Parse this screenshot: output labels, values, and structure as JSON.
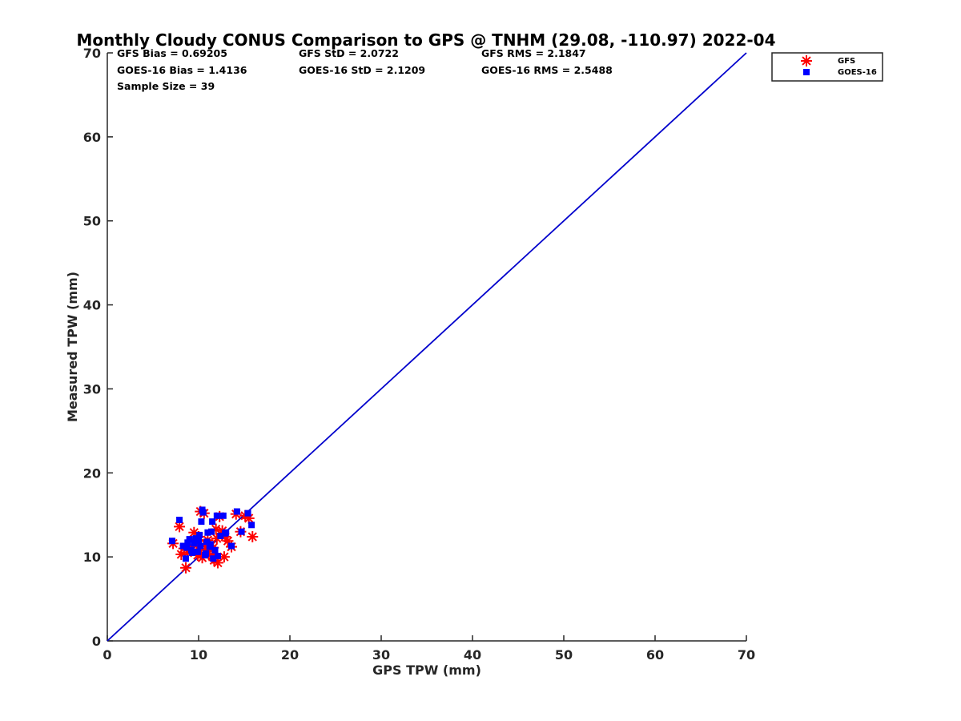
{
  "chart_data": {
    "type": "scatter",
    "title": "Monthly Cloudy CONUS Comparison to GPS @ TNHM (29.08, -110.97) 2022-04",
    "xlabel": "GPS TPW (mm)",
    "ylabel": "Measured TPW (mm)",
    "xlim": [
      0,
      70
    ],
    "ylim": [
      0,
      70
    ],
    "xticks": [
      "0",
      "10",
      "20",
      "30",
      "40",
      "50",
      "60",
      "70"
    ],
    "yticks": [
      "0",
      "10",
      "20",
      "30",
      "40",
      "50",
      "60",
      "70"
    ],
    "grid": false,
    "legend_position": "outside-top-right",
    "stats": [
      "GFS Bias = 0.69205",
      "GFS StD = 2.0722",
      "GFS RMS = 2.1847",
      "GOES-16 Bias = 1.4136",
      "GOES-16 StD = 2.1209",
      "GOES-16 RMS = 2.5488",
      "Sample Size = 39"
    ],
    "reference_line": {
      "color": "#0000cc",
      "x": [
        0,
        70
      ],
      "y": [
        0,
        70
      ]
    },
    "series": [
      {
        "name": "GFS",
        "marker": "asterisk",
        "color": "#ff0000",
        "x": [
          7.2,
          7.9,
          8.1,
          8.6,
          8.8,
          9.0,
          9.3,
          9.6,
          9.9,
          10.0,
          10.2,
          10.3,
          10.4,
          10.6,
          10.8,
          11.0,
          11.1,
          11.3,
          11.5,
          11.7,
          11.9,
          12.1,
          12.3,
          12.6,
          12.9,
          13.2,
          13.6,
          14.1,
          14.6,
          15.1,
          15.5,
          15.9,
          8.4,
          9.5,
          10.7,
          11.6,
          12.0,
          12.8,
          9.8
        ],
        "y": [
          11.6,
          13.6,
          10.3,
          8.7,
          10.5,
          11.2,
          10.9,
          11.8,
          10.2,
          12.4,
          15.4,
          11.0,
          9.9,
          15.2,
          11.5,
          12.0,
          10.4,
          11.3,
          10.1,
          9.6,
          13.3,
          9.3,
          14.8,
          13.1,
          12.4,
          11.9,
          11.2,
          15.1,
          13.0,
          14.9,
          14.6,
          12.4,
          11.0,
          12.9,
          10.8,
          11.1,
          12.2,
          10.0,
          11.4
        ]
      },
      {
        "name": "GOES-16",
        "marker": "square",
        "color": "#0000ff",
        "x": [
          7.1,
          7.9,
          8.3,
          8.6,
          8.8,
          9.0,
          9.2,
          9.5,
          9.7,
          9.9,
          10.1,
          10.2,
          10.3,
          10.4,
          10.5,
          10.7,
          10.9,
          11.0,
          11.2,
          11.4,
          11.5,
          11.6,
          11.8,
          12.0,
          12.1,
          12.4,
          12.7,
          13.0,
          13.6,
          14.2,
          14.7,
          15.4,
          15.8,
          9.3,
          10.0,
          10.8,
          11.3,
          12.9,
          8.7
        ],
        "y": [
          11.9,
          14.4,
          11.3,
          9.8,
          11.7,
          12.1,
          10.8,
          11.6,
          12.2,
          10.6,
          12.6,
          11.3,
          14.2,
          15.6,
          15.3,
          10.2,
          11.8,
          12.9,
          11.2,
          13.0,
          14.2,
          9.8,
          10.8,
          14.9,
          10.1,
          12.5,
          14.9,
          12.9,
          11.3,
          15.4,
          13.0,
          15.2,
          13.8,
          10.5,
          11.9,
          10.4,
          11.5,
          12.8,
          11.1
        ]
      }
    ]
  }
}
